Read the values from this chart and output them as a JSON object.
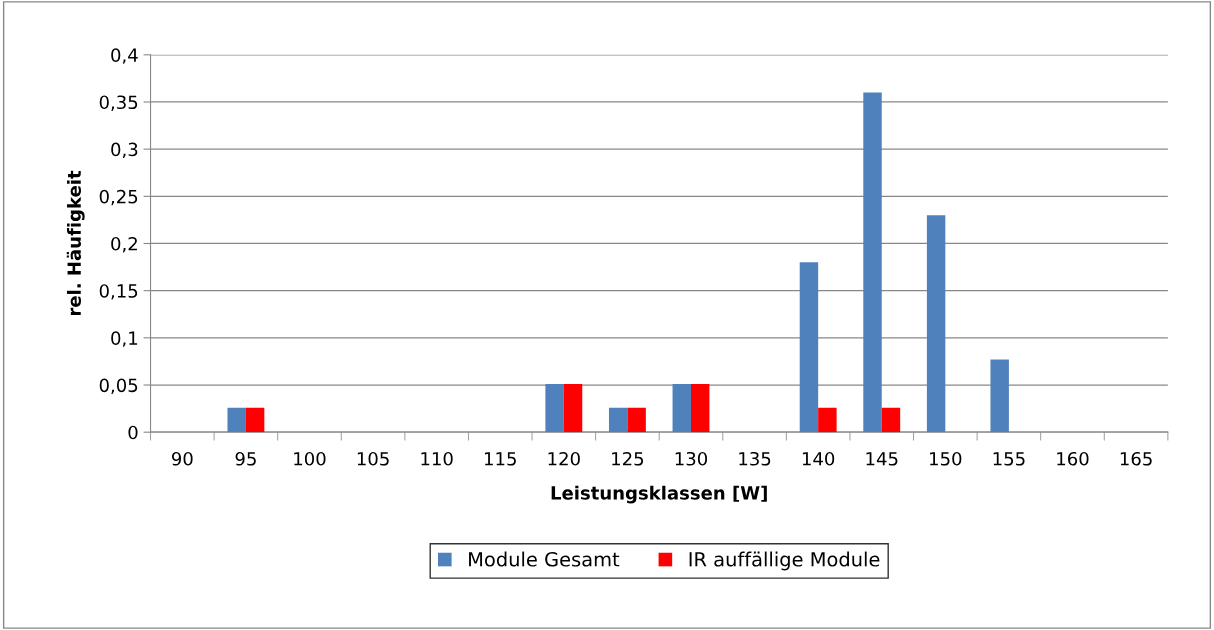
{
  "chart_data": {
    "type": "bar",
    "xlabel": "Leistungsklassen [W]",
    "ylabel": "rel. Häufigkeit",
    "categories": [
      "90",
      "95",
      "100",
      "105",
      "110",
      "115",
      "120",
      "125",
      "130",
      "135",
      "140",
      "145",
      "150",
      "155",
      "160",
      "165"
    ],
    "series": [
      {
        "name": "Module Gesamt",
        "color": "#4f81bd",
        "values": [
          0,
          0.026,
          0,
          0,
          0,
          0,
          0.051,
          0.026,
          0.051,
          0,
          0.18,
          0.36,
          0.23,
          0.077,
          0,
          0
        ]
      },
      {
        "name": "IR auffällige Module",
        "color": "#ff0000",
        "values": [
          0,
          0.026,
          0,
          0,
          0,
          0,
          0.051,
          0.026,
          0.051,
          0,
          0.026,
          0.026,
          0,
          0,
          0,
          0
        ]
      }
    ],
    "ylim": [
      0,
      0.4
    ],
    "yticks": [
      0,
      {
        "value": 0.05,
        "label": "0,05"
      },
      {
        "value": 0.1,
        "label": "0,1"
      },
      {
        "value": 0.15,
        "label": "0,15"
      },
      {
        "value": 0.2,
        "label": "0,2"
      },
      {
        "value": 0.25,
        "label": "0,25"
      },
      {
        "value": 0.3,
        "label": "0,3"
      },
      {
        "value": 0.35,
        "label": "0,35"
      },
      {
        "value": 0.4,
        "label": "0,4"
      }
    ],
    "grid": "y",
    "legend": "bottom"
  }
}
